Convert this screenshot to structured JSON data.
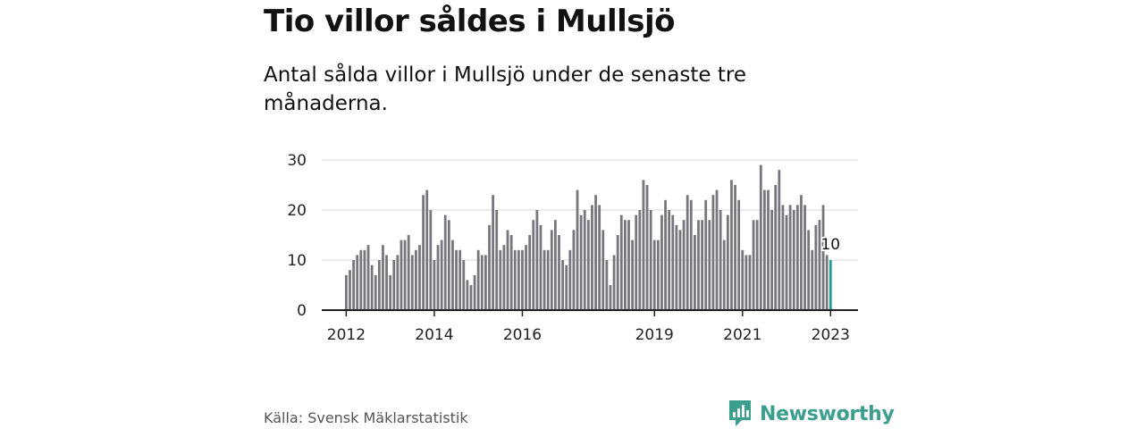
{
  "title": "Tio villor såldes i Mullsjö",
  "subtitle": "Antal sålda villor i Mullsjö under de senaste tre månaderna.",
  "source": "Källa: Svensk Mäklarstatistik",
  "brand": {
    "name": "Newsworthy",
    "icon": "newsworthy-logo-icon"
  },
  "colors": {
    "bar": "#77767c",
    "highlight": "#229e90",
    "grid": "#d9d9d9",
    "axis": "#222222",
    "brand": "#3c9f8e"
  },
  "chart_data": {
    "type": "bar",
    "title": "Tio villor såldes i Mullsjö",
    "xlabel": "",
    "ylabel": "",
    "ylim": [
      0,
      30
    ],
    "yticks": [
      "0",
      "10",
      "20",
      "30"
    ],
    "xticks": [
      "2012",
      "2014",
      "2016",
      "2019",
      "2021",
      "2023"
    ],
    "highlight": {
      "value": 10,
      "label": "10"
    },
    "series": [
      {
        "name": "Antal sålda villor",
        "values": [
          7,
          8,
          10,
          11,
          12,
          12,
          13,
          9,
          7,
          10,
          13,
          11,
          7,
          10,
          11,
          14,
          14,
          15,
          11,
          12,
          13,
          23,
          24,
          20,
          10,
          13,
          14,
          19,
          18,
          14,
          12,
          12,
          10,
          6,
          5,
          7,
          12,
          11,
          11,
          17,
          23,
          20,
          12,
          13,
          16,
          15,
          12,
          12,
          12,
          13,
          15,
          18,
          20,
          17,
          12,
          12,
          16,
          18,
          15,
          10,
          9,
          12,
          16,
          24,
          19,
          20,
          18,
          21,
          23,
          21,
          16,
          10,
          5,
          11,
          15,
          19,
          18,
          18,
          14,
          19,
          20,
          26,
          25,
          20,
          14,
          14,
          19,
          22,
          20,
          19,
          17,
          16,
          18,
          23,
          22,
          15,
          18,
          18,
          22,
          18,
          23,
          24,
          20,
          14,
          19,
          26,
          25,
          22,
          12,
          11,
          11,
          18,
          18,
          29,
          24,
          24,
          20,
          25,
          28,
          21,
          19,
          21,
          20,
          21,
          23,
          21,
          16,
          12,
          17,
          18,
          21,
          11,
          10
        ]
      }
    ]
  }
}
